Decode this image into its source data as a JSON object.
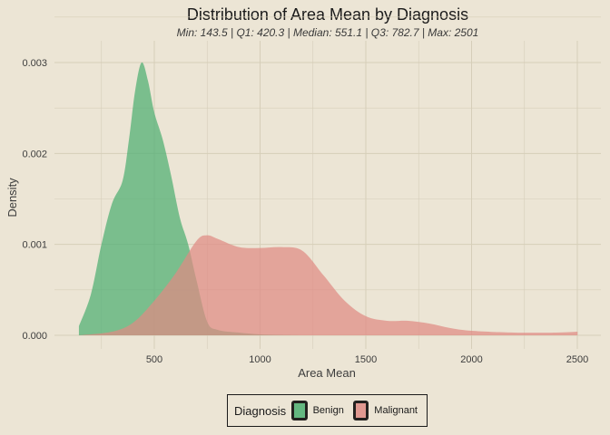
{
  "chart_data": {
    "type": "area",
    "title": "Distribution of Area Mean by Diagnosis",
    "subtitle": "Min: 143.5 | Q1: 420.3 | Median: 551.1 | Q3: 782.7 | Max: 2501",
    "xlabel": "Area Mean",
    "ylabel": "Density",
    "xlim": [
      143.5,
      2501
    ],
    "ylim": [
      0,
      0.003
    ],
    "x_ticks": [
      500,
      1000,
      1500,
      2000,
      2500
    ],
    "y_ticks": [
      "0.000",
      "0.001",
      "0.002",
      "0.003"
    ],
    "grid": true,
    "legend": {
      "title": "Diagnosis",
      "position": "bottom",
      "entries": [
        "Benign",
        "Malignant"
      ]
    },
    "series": [
      {
        "name": "Benign",
        "color": "#4daf72",
        "x": [
          143.5,
          200,
          250,
          300,
          350,
          380,
          410,
          440,
          470,
          500,
          540,
          580,
          620,
          660,
          700,
          750,
          800,
          900,
          1000,
          1100,
          1200
        ],
        "y": [
          0.0001,
          0.00045,
          0.001,
          0.00145,
          0.0017,
          0.00215,
          0.0027,
          0.003,
          0.0028,
          0.00245,
          0.00215,
          0.00175,
          0.0013,
          0.001,
          0.0006,
          0.00015,
          6e-05,
          3e-05,
          1e-05,
          4e-06,
          0.0
        ]
      },
      {
        "name": "Malignant",
        "color": "#df8b84",
        "x": [
          143.5,
          300,
          400,
          500,
          600,
          700,
          750,
          800,
          900,
          1000,
          1100,
          1200,
          1300,
          1400,
          1500,
          1600,
          1700,
          1800,
          1900,
          2000,
          2200,
          2400,
          2501
        ],
        "y": [
          0.0,
          4e-05,
          0.00014,
          0.00038,
          0.00068,
          0.00104,
          0.0011,
          0.00106,
          0.00097,
          0.00096,
          0.00097,
          0.00093,
          0.00066,
          0.00038,
          0.00021,
          0.00016,
          0.00016,
          0.00013,
          8e-05,
          5e-05,
          3e-05,
          3e-05,
          4e-05
        ]
      }
    ]
  }
}
